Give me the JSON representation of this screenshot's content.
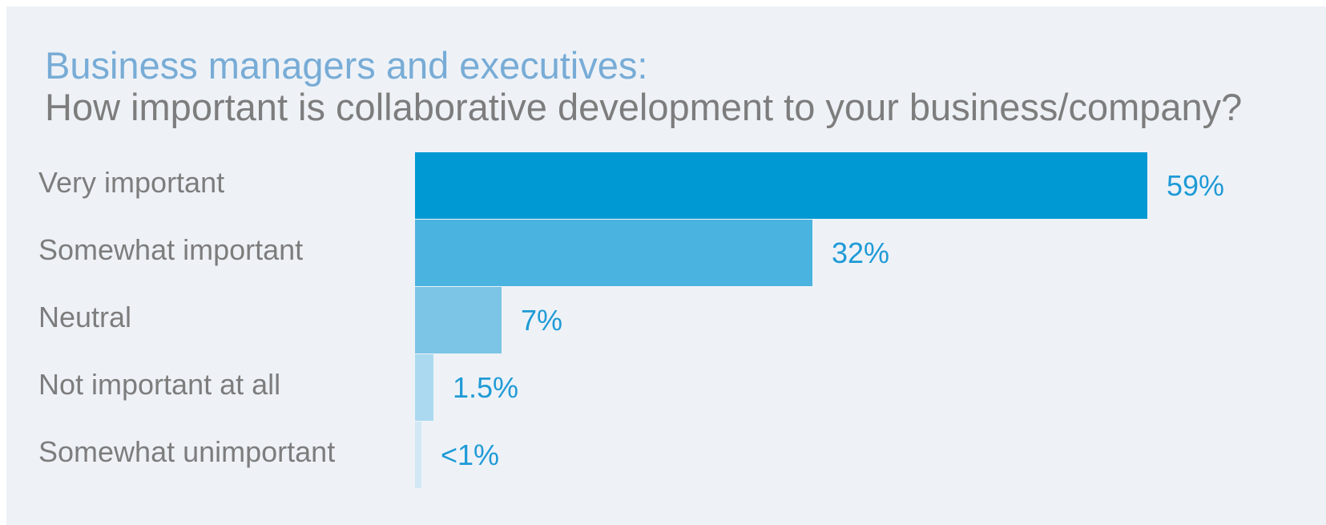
{
  "chart_data": {
    "type": "bar",
    "orientation": "horizontal",
    "title": "Business managers and executives:",
    "subtitle": "How important is collaborative development to your business/company?",
    "categories": [
      "Very important",
      "Somewhat important",
      "Neutral",
      "Not important at all",
      "Somewhat unimportant"
    ],
    "values": [
      59,
      32,
      7,
      1.5,
      0.5
    ],
    "value_labels": [
      "59%",
      "32%",
      "7%",
      "1.5%",
      "<1%"
    ],
    "colors": [
      "#0099d3",
      "#4bb3df",
      "#7cc5e6",
      "#abdaf0",
      "#d2e8f5"
    ],
    "xlim": [
      0,
      59
    ],
    "grid": false,
    "legend": "none"
  }
}
